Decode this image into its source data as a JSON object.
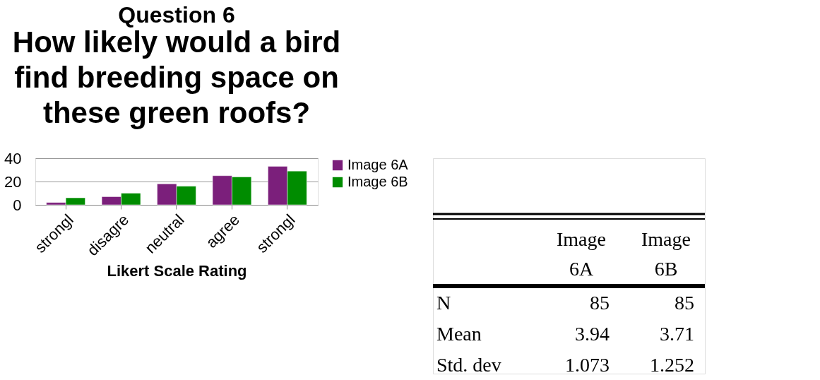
{
  "chart_data": [
    {
      "type": "bar",
      "title": "Question 6",
      "subtitle": "How likely would a bird find breeding space on these green roofs?",
      "xlabel": "Likert Scale Rating",
      "categories": [
        "strongl",
        "disagre",
        "neutral",
        "agree",
        "strongl"
      ],
      "series": [
        {
          "name": "Image 6A",
          "color": "#7b1f7b",
          "values": [
            2,
            7,
            18,
            25,
            33
          ]
        },
        {
          "name": "Image 6B",
          "color": "#008c00",
          "values": [
            6,
            10,
            16,
            24,
            29
          ]
        }
      ],
      "ylim": [
        0,
        40
      ],
      "yticks": [
        0,
        20,
        40
      ],
      "grid": "y",
      "legend": "right"
    },
    {
      "type": "other",
      "categories": [
        "Image 6A",
        "Image 6B"
      ],
      "y_categories": [
        "N",
        "Mean",
        "Std. dev"
      ],
      "cell_labels": [
        [
          "85",
          "85"
        ],
        [
          "3.94",
          "3.71"
        ],
        [
          "1.073",
          "1.252"
        ]
      ]
    }
  ]
}
